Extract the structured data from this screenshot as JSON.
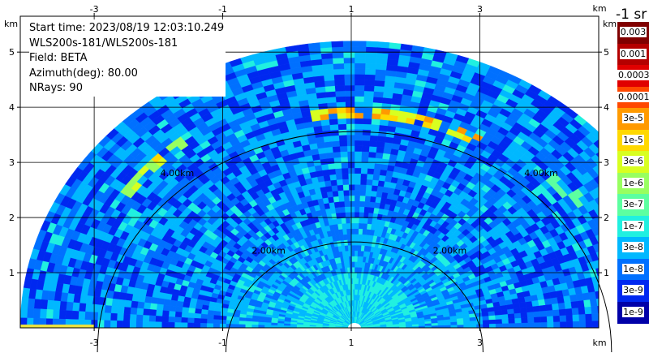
{
  "chart_data": {
    "type": "heatmap",
    "title_lines": [
      "Start time: 2023/08/19 12:03:10.249",
      "WLS200s-181/WLS200s-181",
      "Field: BETA",
      "Azimuth(deg): 80.00",
      "NRays: 90"
    ],
    "x_unit_label": "km",
    "y_unit_label": "km",
    "xlim": [
      -4.15,
      4.85
    ],
    "ylim": [
      0,
      5.65
    ],
    "x_ticks": [
      -3,
      -1,
      1,
      3
    ],
    "x_tick_labels": [
      "-3",
      "-1",
      "1",
      "3"
    ],
    "y_ticks": [
      1,
      2,
      3,
      4,
      5
    ],
    "y_tick_labels": [
      "1",
      "2",
      "3",
      "4",
      "5"
    ],
    "range_rings": [
      {
        "radius_km": 2,
        "label_left": "2.00km",
        "label_right": "2.00km"
      },
      {
        "radius_km": 4,
        "label_left": "4.00km",
        "label_right": "4.00km"
      }
    ],
    "max_range_km": 5.2,
    "center_x_km": 1.05,
    "colorbar": {
      "unit": "-1 sr",
      "labels": [
        "0.003",
        "0.001",
        "0.0003",
        "0.0001",
        "3e-5",
        "1e-5",
        "3e-6",
        "1e-6",
        "3e-7",
        "1e-7",
        "3e-8",
        "1e-8",
        "3e-9",
        "1e-9"
      ],
      "colors": [
        "#800000",
        "#b40000",
        "#e00000",
        "#ff4800",
        "#ff9a00",
        "#ffd800",
        "#d8ff20",
        "#98ff60",
        "#5cffa0",
        "#20f0e0",
        "#00b8ff",
        "#0070ff",
        "#0028f0",
        "#0000a8"
      ]
    },
    "grid": true
  }
}
